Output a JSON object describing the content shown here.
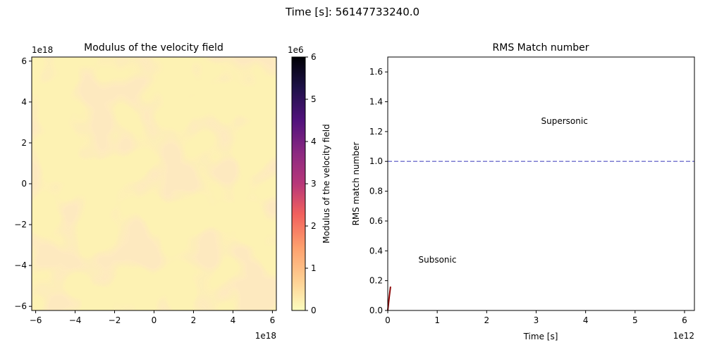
{
  "figure": {
    "suptitle": "Time [s]: 56147733240.0"
  },
  "chart_data": [
    {
      "type": "heatmap",
      "title": "Modulus of the velocity field",
      "xlabel": "",
      "ylabel": "",
      "x_ticks": [
        -6,
        -4,
        -2,
        0,
        2,
        4,
        6
      ],
      "y_ticks": [
        -6,
        -4,
        -2,
        0,
        2,
        4,
        6
      ],
      "x_offset_label": "1e18",
      "y_offset_label": "1e18",
      "xlim": [
        -6.2,
        6.2
      ],
      "ylim": [
        -6.2,
        6.2
      ],
      "colormap": "magma_r",
      "colorbar": {
        "label": "Modulus of the velocity field",
        "offset_label": "1e6",
        "ticks": [
          0,
          1,
          2,
          3,
          4,
          5,
          6
        ],
        "range": [
          0,
          6
        ]
      },
      "field_description": "near-uniform low magnitude values with wavy pattern",
      "field_range": [
        0.1,
        0.5
      ]
    },
    {
      "type": "line",
      "title": "RMS Match number",
      "xlabel": "Time [s]",
      "ylabel": "RMS match number",
      "x_offset_label": "1e12",
      "x_ticks": [
        0,
        1,
        2,
        3,
        4,
        5,
        6
      ],
      "y_ticks": [
        0.0,
        0.2,
        0.4,
        0.6,
        0.8,
        1.0,
        1.2,
        1.4,
        1.6
      ],
      "xlim": [
        0,
        6.2
      ],
      "ylim": [
        0,
        1.7
      ],
      "series": [
        {
          "color": "#8b0000",
          "x": [
            0.0,
            0.03,
            0.056
          ],
          "y": [
            0.0,
            0.09,
            0.16
          ]
        }
      ],
      "hline": {
        "y": 1.0,
        "color": "#7b7bd1",
        "style": "dashed"
      },
      "annotations": [
        {
          "text": "Supersonic",
          "x": 3.1,
          "y": 1.27
        },
        {
          "text": "Subsonic",
          "x": 0.62,
          "y": 0.34
        }
      ]
    }
  ]
}
